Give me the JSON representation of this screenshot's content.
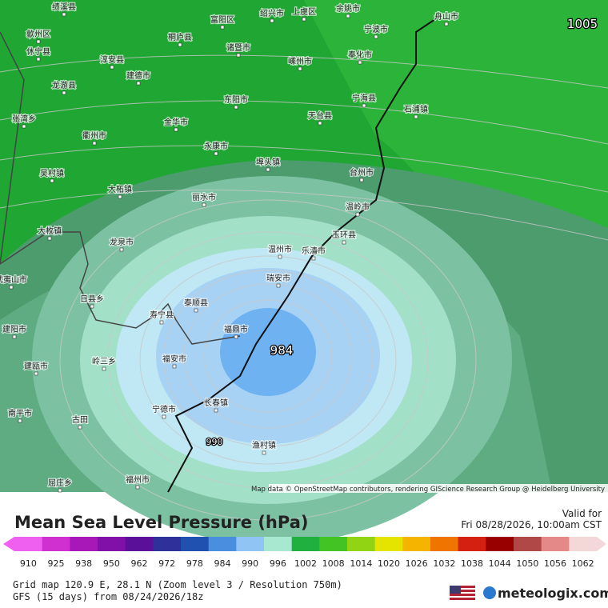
{
  "map": {
    "pressure_labels": [
      "1005",
      "984",
      "990"
    ],
    "places": [
      "绩溪县",
      "富阳区",
      "绍兴市",
      "上虞区",
      "余姚市",
      "舟山市",
      "宁波市",
      "歙州区",
      "休宁县",
      "桐庐县",
      "诸暨市",
      "嵊州市",
      "奉化市",
      "淳安县",
      "建德市",
      "龙游县",
      "东阳市",
      "宁海县",
      "石浦镇",
      "天台县",
      "张湾乡",
      "金华市",
      "衢州市",
      "永康市",
      "埠头镇",
      "台州市",
      "吴村镇",
      "丽水市",
      "大柘镇",
      "温岭市",
      "大枚镇",
      "玉环县",
      "龙泉市",
      "温州市",
      "乐清市",
      "瑞安市",
      "武夷山市",
      "日县乡",
      "泰顺县",
      "寿宁县",
      "福鼎市",
      "建阳市",
      "福安市",
      "岭三乡",
      "建瓯市",
      "宁德市",
      "长春镇",
      "南平市",
      "古田",
      "渔村镇",
      "屈庄乡",
      "福州市"
    ],
    "attribution": "Map data © OpenStreetMap contributors, rendering GIScience Research Group @ Heidelberg University"
  },
  "header": {
    "title": "Mean Sea Level Pressure (hPa)",
    "valid_label": "Valid for",
    "valid_time": "Fri 08/28/2026, 10:00am CST"
  },
  "scale": {
    "labels": [
      910,
      925,
      938,
      950,
      962,
      972,
      978,
      984,
      990,
      996,
      1002,
      1008,
      1014,
      1020,
      1026,
      1032,
      1038,
      1044,
      1050,
      1056,
      1062
    ],
    "colors": [
      "#f060f0",
      "#d030d0",
      "#a818b8",
      "#8010a8",
      "#5a1098",
      "#30309a",
      "#2050b0",
      "#4a8ee0",
      "#90c4f4",
      "#a8e8d0",
      "#20b040",
      "#44c424",
      "#90d414",
      "#e4e400",
      "#f4b400",
      "#f07400",
      "#d42010",
      "#980000",
      "#b04848",
      "#e48888",
      "#f4d8d8"
    ]
  },
  "footer": {
    "grid_info": "Grid map 120.9 E, 28.1 N (Zoom level 3 / Resolution 750m)",
    "model_run": "GFS (15 days) from  08/24/2026/18z",
    "brand": "meteologix.com"
  }
}
